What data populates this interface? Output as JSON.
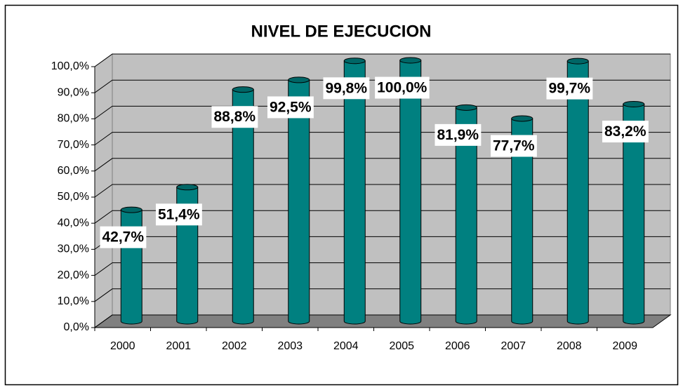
{
  "chart_data": {
    "type": "bar3d",
    "title": "NIVEL DE EJECUCION",
    "categories": [
      "2000",
      "2001",
      "2002",
      "2003",
      "2004",
      "2005",
      "2006",
      "2007",
      "2008",
      "2009"
    ],
    "values": [
      42.7,
      51.4,
      88.8,
      92.5,
      99.8,
      100.0,
      81.9,
      77.7,
      99.7,
      83.2
    ],
    "value_labels": [
      "42,7%",
      "51,4%",
      "88,8%",
      "92,5%",
      "99,8%",
      "100,0%",
      "81,9%",
      "77,7%",
      "99,7%",
      "83,2%"
    ],
    "color": "#008080",
    "ylim": [
      0,
      100
    ],
    "yticks": [
      {
        "value": 0,
        "label": "0,0%"
      },
      {
        "value": 10,
        "label": "10,0%"
      },
      {
        "value": 20,
        "label": "20,0%"
      },
      {
        "value": 30,
        "label": "30,0%"
      },
      {
        "value": 40,
        "label": "40,0%"
      },
      {
        "value": 50,
        "label": "50,0%"
      },
      {
        "value": 60,
        "label": "60,0%"
      },
      {
        "value": 70,
        "label": "70,0%"
      },
      {
        "value": 80,
        "label": "80,0%"
      },
      {
        "value": 90,
        "label": "90,0%"
      },
      {
        "value": 100,
        "label": "100,0%"
      }
    ],
    "grid": true
  }
}
